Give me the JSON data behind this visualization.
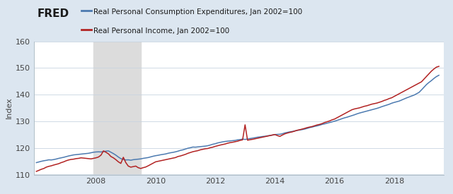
{
  "legend_labels": [
    "Real Personal Consumption Expenditures, Jan 2002=100",
    "Real Personal Income, Jan 2002=100"
  ],
  "legend_colors": [
    "#4c7ab0",
    "#b22222"
  ],
  "recession_start": 2007.917,
  "recession_end": 2009.5,
  "recession_color": "#dcdcdc",
  "ylim": [
    110,
    160
  ],
  "yticks": [
    110,
    120,
    130,
    140,
    150,
    160
  ],
  "xlim": [
    2005.92,
    2019.67
  ],
  "xticks": [
    2008,
    2010,
    2012,
    2014,
    2016,
    2018
  ],
  "ylabel": "Index",
  "header_bg": "#dce6f0",
  "plot_bg_color": "#ffffff",
  "grid_color": "#c8d4e0",
  "border_color": "#b0bec8",
  "line_pce_color": "#4c7ab0",
  "line_pi_color": "#b22222",
  "line_width": 1.1,
  "tick_fontsize": 8,
  "ylabel_fontsize": 8,
  "legend_fontsize": 7.5,
  "pce_data": [
    [
      2006.0,
      114.5
    ],
    [
      2006.083,
      114.75
    ],
    [
      2006.167,
      115.0
    ],
    [
      2006.25,
      115.2
    ],
    [
      2006.333,
      115.35
    ],
    [
      2006.417,
      115.55
    ],
    [
      2006.5,
      115.5
    ],
    [
      2006.583,
      115.65
    ],
    [
      2006.667,
      115.85
    ],
    [
      2006.75,
      116.1
    ],
    [
      2006.833,
      116.3
    ],
    [
      2006.917,
      116.5
    ],
    [
      2007.0,
      116.75
    ],
    [
      2007.083,
      117.0
    ],
    [
      2007.167,
      117.2
    ],
    [
      2007.25,
      117.4
    ],
    [
      2007.333,
      117.5
    ],
    [
      2007.417,
      117.6
    ],
    [
      2007.5,
      117.7
    ],
    [
      2007.583,
      117.8
    ],
    [
      2007.667,
      117.9
    ],
    [
      2007.75,
      118.0
    ],
    [
      2007.833,
      118.2
    ],
    [
      2007.917,
      118.4
    ],
    [
      2008.0,
      118.5
    ],
    [
      2008.083,
      118.55
    ],
    [
      2008.167,
      118.5
    ],
    [
      2008.25,
      118.65
    ],
    [
      2008.333,
      118.8
    ],
    [
      2008.417,
      118.9
    ],
    [
      2008.5,
      118.4
    ],
    [
      2008.583,
      117.9
    ],
    [
      2008.667,
      117.3
    ],
    [
      2008.75,
      116.6
    ],
    [
      2008.833,
      116.0
    ],
    [
      2008.917,
      115.7
    ],
    [
      2009.0,
      115.5
    ],
    [
      2009.083,
      115.55
    ],
    [
      2009.167,
      115.4
    ],
    [
      2009.25,
      115.6
    ],
    [
      2009.333,
      115.7
    ],
    [
      2009.417,
      115.8
    ],
    [
      2009.5,
      115.9
    ],
    [
      2009.583,
      116.1
    ],
    [
      2009.667,
      116.25
    ],
    [
      2009.75,
      116.4
    ],
    [
      2009.833,
      116.65
    ],
    [
      2009.917,
      116.9
    ],
    [
      2010.0,
      117.1
    ],
    [
      2010.083,
      117.25
    ],
    [
      2010.167,
      117.45
    ],
    [
      2010.25,
      117.6
    ],
    [
      2010.333,
      117.75
    ],
    [
      2010.417,
      118.0
    ],
    [
      2010.5,
      118.2
    ],
    [
      2010.583,
      118.35
    ],
    [
      2010.667,
      118.55
    ],
    [
      2010.75,
      118.8
    ],
    [
      2010.833,
      119.1
    ],
    [
      2010.917,
      119.3
    ],
    [
      2011.0,
      119.6
    ],
    [
      2011.083,
      119.9
    ],
    [
      2011.167,
      120.1
    ],
    [
      2011.25,
      120.35
    ],
    [
      2011.333,
      120.3
    ],
    [
      2011.417,
      120.4
    ],
    [
      2011.5,
      120.5
    ],
    [
      2011.583,
      120.6
    ],
    [
      2011.667,
      120.7
    ],
    [
      2011.75,
      120.85
    ],
    [
      2011.833,
      121.1
    ],
    [
      2011.917,
      121.4
    ],
    [
      2012.0,
      121.6
    ],
    [
      2012.083,
      121.9
    ],
    [
      2012.167,
      122.1
    ],
    [
      2012.25,
      122.3
    ],
    [
      2012.333,
      122.45
    ],
    [
      2012.417,
      122.55
    ],
    [
      2012.5,
      122.65
    ],
    [
      2012.583,
      122.75
    ],
    [
      2012.667,
      122.85
    ],
    [
      2012.75,
      123.05
    ],
    [
      2012.833,
      123.15
    ],
    [
      2012.917,
      123.35
    ],
    [
      2013.0,
      123.2
    ],
    [
      2013.083,
      123.35
    ],
    [
      2013.167,
      123.55
    ],
    [
      2013.25,
      123.7
    ],
    [
      2013.333,
      123.85
    ],
    [
      2013.417,
      124.05
    ],
    [
      2013.5,
      124.15
    ],
    [
      2013.583,
      124.3
    ],
    [
      2013.667,
      124.4
    ],
    [
      2013.75,
      124.55
    ],
    [
      2013.833,
      124.7
    ],
    [
      2013.917,
      124.85
    ],
    [
      2014.0,
      125.05
    ],
    [
      2014.083,
      125.1
    ],
    [
      2014.167,
      125.15
    ],
    [
      2014.25,
      125.35
    ],
    [
      2014.333,
      125.65
    ],
    [
      2014.417,
      125.85
    ],
    [
      2014.5,
      126.05
    ],
    [
      2014.583,
      126.2
    ],
    [
      2014.667,
      126.4
    ],
    [
      2014.75,
      126.6
    ],
    [
      2014.833,
      126.75
    ],
    [
      2014.917,
      126.9
    ],
    [
      2015.0,
      127.1
    ],
    [
      2015.083,
      127.35
    ],
    [
      2015.167,
      127.65
    ],
    [
      2015.25,
      127.85
    ],
    [
      2015.333,
      128.1
    ],
    [
      2015.417,
      128.3
    ],
    [
      2015.5,
      128.55
    ],
    [
      2015.583,
      128.85
    ],
    [
      2015.667,
      129.05
    ],
    [
      2015.75,
      129.3
    ],
    [
      2015.833,
      129.55
    ],
    [
      2015.917,
      129.8
    ],
    [
      2016.0,
      130.05
    ],
    [
      2016.083,
      130.35
    ],
    [
      2016.167,
      130.65
    ],
    [
      2016.25,
      131.0
    ],
    [
      2016.333,
      131.3
    ],
    [
      2016.417,
      131.55
    ],
    [
      2016.5,
      131.85
    ],
    [
      2016.583,
      132.15
    ],
    [
      2016.667,
      132.45
    ],
    [
      2016.75,
      132.8
    ],
    [
      2016.833,
      133.1
    ],
    [
      2016.917,
      133.35
    ],
    [
      2017.0,
      133.6
    ],
    [
      2017.083,
      133.85
    ],
    [
      2017.167,
      134.1
    ],
    [
      2017.25,
      134.35
    ],
    [
      2017.333,
      134.6
    ],
    [
      2017.417,
      134.85
    ],
    [
      2017.5,
      135.15
    ],
    [
      2017.583,
      135.5
    ],
    [
      2017.667,
      135.8
    ],
    [
      2017.75,
      136.1
    ],
    [
      2017.833,
      136.4
    ],
    [
      2017.917,
      136.8
    ],
    [
      2018.0,
      137.1
    ],
    [
      2018.083,
      137.35
    ],
    [
      2018.167,
      137.6
    ],
    [
      2018.25,
      138.0
    ],
    [
      2018.333,
      138.4
    ],
    [
      2018.417,
      138.8
    ],
    [
      2018.5,
      139.15
    ],
    [
      2018.583,
      139.5
    ],
    [
      2018.667,
      139.85
    ],
    [
      2018.75,
      140.35
    ],
    [
      2018.833,
      140.85
    ],
    [
      2018.917,
      141.8
    ],
    [
      2019.0,
      142.8
    ],
    [
      2019.083,
      143.8
    ],
    [
      2019.167,
      144.6
    ],
    [
      2019.25,
      145.3
    ],
    [
      2019.333,
      146.1
    ],
    [
      2019.417,
      146.8
    ],
    [
      2019.5,
      147.3
    ]
  ],
  "pi_data": [
    [
      2006.0,
      111.2
    ],
    [
      2006.083,
      111.6
    ],
    [
      2006.167,
      112.0
    ],
    [
      2006.25,
      112.3
    ],
    [
      2006.333,
      112.8
    ],
    [
      2006.417,
      113.1
    ],
    [
      2006.5,
      113.3
    ],
    [
      2006.583,
      113.6
    ],
    [
      2006.667,
      113.85
    ],
    [
      2006.75,
      114.1
    ],
    [
      2006.833,
      114.5
    ],
    [
      2006.917,
      114.8
    ],
    [
      2007.0,
      115.2
    ],
    [
      2007.083,
      115.5
    ],
    [
      2007.167,
      115.7
    ],
    [
      2007.25,
      115.8
    ],
    [
      2007.333,
      116.0
    ],
    [
      2007.417,
      116.1
    ],
    [
      2007.5,
      116.3
    ],
    [
      2007.583,
      116.2
    ],
    [
      2007.667,
      116.1
    ],
    [
      2007.75,
      116.0
    ],
    [
      2007.833,
      115.9
    ],
    [
      2007.917,
      116.1
    ],
    [
      2008.0,
      116.3
    ],
    [
      2008.083,
      116.6
    ],
    [
      2008.167,
      117.3
    ],
    [
      2008.25,
      118.9
    ],
    [
      2008.333,
      118.4
    ],
    [
      2008.417,
      117.8
    ],
    [
      2008.5,
      116.8
    ],
    [
      2008.583,
      116.3
    ],
    [
      2008.667,
      115.6
    ],
    [
      2008.75,
      114.8
    ],
    [
      2008.833,
      114.2
    ],
    [
      2008.917,
      116.5
    ],
    [
      2009.0,
      114.5
    ],
    [
      2009.083,
      113.2
    ],
    [
      2009.167,
      112.8
    ],
    [
      2009.25,
      113.0
    ],
    [
      2009.333,
      113.2
    ],
    [
      2009.417,
      112.6
    ],
    [
      2009.5,
      112.3
    ],
    [
      2009.583,
      112.6
    ],
    [
      2009.667,
      112.85
    ],
    [
      2009.75,
      113.3
    ],
    [
      2009.833,
      113.8
    ],
    [
      2009.917,
      114.3
    ],
    [
      2010.0,
      114.8
    ],
    [
      2010.083,
      115.0
    ],
    [
      2010.167,
      115.2
    ],
    [
      2010.25,
      115.4
    ],
    [
      2010.333,
      115.6
    ],
    [
      2010.417,
      115.8
    ],
    [
      2010.5,
      116.0
    ],
    [
      2010.583,
      116.2
    ],
    [
      2010.667,
      116.4
    ],
    [
      2010.75,
      116.8
    ],
    [
      2010.833,
      117.0
    ],
    [
      2010.917,
      117.3
    ],
    [
      2011.0,
      117.6
    ],
    [
      2011.083,
      118.0
    ],
    [
      2011.167,
      118.3
    ],
    [
      2011.25,
      118.6
    ],
    [
      2011.333,
      118.8
    ],
    [
      2011.417,
      119.0
    ],
    [
      2011.5,
      119.3
    ],
    [
      2011.583,
      119.5
    ],
    [
      2011.667,
      119.7
    ],
    [
      2011.75,
      119.8
    ],
    [
      2011.833,
      120.1
    ],
    [
      2011.917,
      120.3
    ],
    [
      2012.0,
      120.6
    ],
    [
      2012.083,
      120.85
    ],
    [
      2012.167,
      121.1
    ],
    [
      2012.25,
      121.3
    ],
    [
      2012.333,
      121.5
    ],
    [
      2012.417,
      121.8
    ],
    [
      2012.5,
      122.0
    ],
    [
      2012.583,
      122.15
    ],
    [
      2012.667,
      122.35
    ],
    [
      2012.75,
      122.55
    ],
    [
      2012.833,
      122.85
    ],
    [
      2012.917,
      123.05
    ],
    [
      2013.0,
      128.7
    ],
    [
      2013.083,
      122.9
    ],
    [
      2013.167,
      123.1
    ],
    [
      2013.25,
      123.25
    ],
    [
      2013.333,
      123.45
    ],
    [
      2013.417,
      123.65
    ],
    [
      2013.5,
      123.85
    ],
    [
      2013.583,
      124.05
    ],
    [
      2013.667,
      124.25
    ],
    [
      2013.75,
      124.45
    ],
    [
      2013.833,
      124.65
    ],
    [
      2013.917,
      124.85
    ],
    [
      2014.0,
      125.05
    ],
    [
      2014.083,
      124.65
    ],
    [
      2014.167,
      124.35
    ],
    [
      2014.25,
      124.85
    ],
    [
      2014.333,
      125.3
    ],
    [
      2014.417,
      125.6
    ],
    [
      2014.5,
      125.85
    ],
    [
      2014.583,
      126.05
    ],
    [
      2014.667,
      126.35
    ],
    [
      2014.75,
      126.65
    ],
    [
      2014.833,
      126.85
    ],
    [
      2014.917,
      127.1
    ],
    [
      2015.0,
      127.35
    ],
    [
      2015.083,
      127.65
    ],
    [
      2015.167,
      127.85
    ],
    [
      2015.25,
      128.05
    ],
    [
      2015.333,
      128.35
    ],
    [
      2015.417,
      128.65
    ],
    [
      2015.5,
      128.85
    ],
    [
      2015.583,
      129.15
    ],
    [
      2015.667,
      129.55
    ],
    [
      2015.75,
      129.85
    ],
    [
      2015.833,
      130.15
    ],
    [
      2015.917,
      130.55
    ],
    [
      2016.0,
      130.85
    ],
    [
      2016.083,
      131.35
    ],
    [
      2016.167,
      131.85
    ],
    [
      2016.25,
      132.35
    ],
    [
      2016.333,
      132.85
    ],
    [
      2016.417,
      133.35
    ],
    [
      2016.5,
      133.85
    ],
    [
      2016.583,
      134.35
    ],
    [
      2016.667,
      134.65
    ],
    [
      2016.75,
      134.85
    ],
    [
      2016.833,
      135.05
    ],
    [
      2016.917,
      135.35
    ],
    [
      2017.0,
      135.65
    ],
    [
      2017.083,
      135.85
    ],
    [
      2017.167,
      136.15
    ],
    [
      2017.25,
      136.45
    ],
    [
      2017.333,
      136.65
    ],
    [
      2017.417,
      136.85
    ],
    [
      2017.5,
      137.15
    ],
    [
      2017.583,
      137.45
    ],
    [
      2017.667,
      137.85
    ],
    [
      2017.75,
      138.15
    ],
    [
      2017.833,
      138.55
    ],
    [
      2017.917,
      138.85
    ],
    [
      2018.0,
      139.35
    ],
    [
      2018.083,
      139.85
    ],
    [
      2018.167,
      140.35
    ],
    [
      2018.25,
      140.85
    ],
    [
      2018.333,
      141.35
    ],
    [
      2018.417,
      141.85
    ],
    [
      2018.5,
      142.35
    ],
    [
      2018.583,
      142.85
    ],
    [
      2018.667,
      143.35
    ],
    [
      2018.75,
      143.85
    ],
    [
      2018.833,
      144.35
    ],
    [
      2018.917,
      144.85
    ],
    [
      2019.0,
      145.85
    ],
    [
      2019.083,
      146.85
    ],
    [
      2019.167,
      147.85
    ],
    [
      2019.25,
      148.85
    ],
    [
      2019.333,
      149.65
    ],
    [
      2019.417,
      150.35
    ],
    [
      2019.5,
      150.65
    ]
  ]
}
